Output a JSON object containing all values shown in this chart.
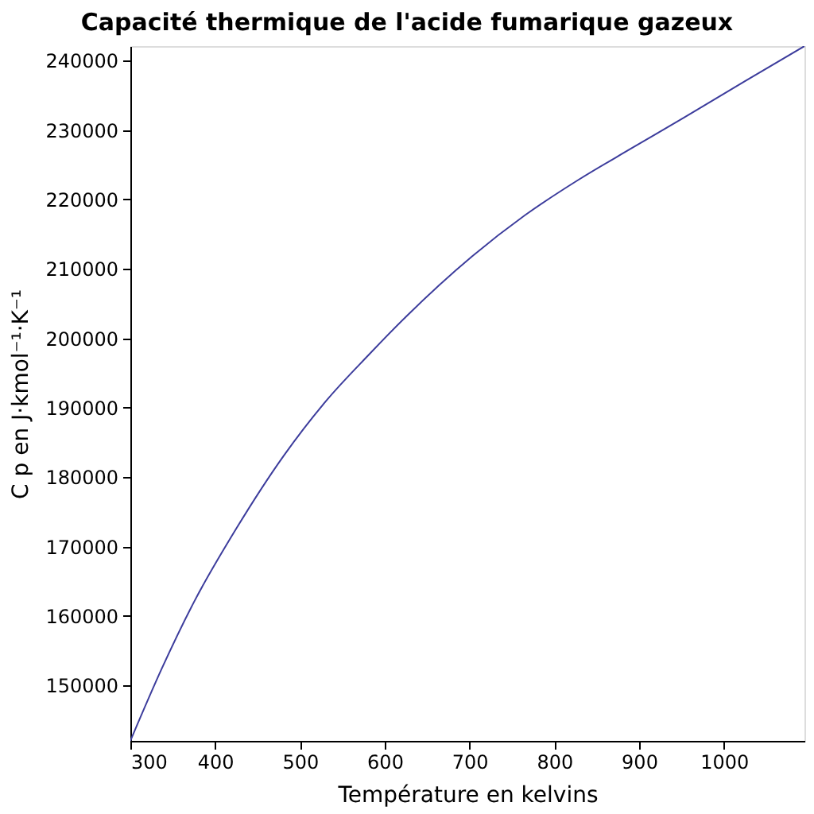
{
  "chart_data": {
    "type": "line",
    "title": "Capacité thermique de l'acide fumarique gazeux",
    "xlabel": "Température en kelvins",
    "ylabel": "C p en J·kmol⁻¹·K⁻¹",
    "x": [
      300,
      337,
      375,
      425,
      481,
      531,
      581,
      625,
      703,
      765,
      828,
      890,
      953,
      1024,
      1095
    ],
    "series": [
      {
        "color": "#3c3c9c",
        "values": [
          142000,
          152400,
          162000,
          172600,
          183100,
          191000,
          197600,
          203100,
          211800,
          217700,
          222800,
          227300,
          231800,
          237000,
          242100
        ]
      }
    ],
    "xlim": [
      300,
      1095
    ],
    "ylim": [
      142000,
      242100
    ],
    "xticks": [
      300,
      400,
      500,
      600,
      700,
      800,
      900,
      1000
    ],
    "yticks": [
      150000,
      160000,
      170000,
      180000,
      190000,
      200000,
      210000,
      220000,
      230000,
      240000
    ],
    "grid": false,
    "line_style": "solid",
    "marker": "none"
  }
}
